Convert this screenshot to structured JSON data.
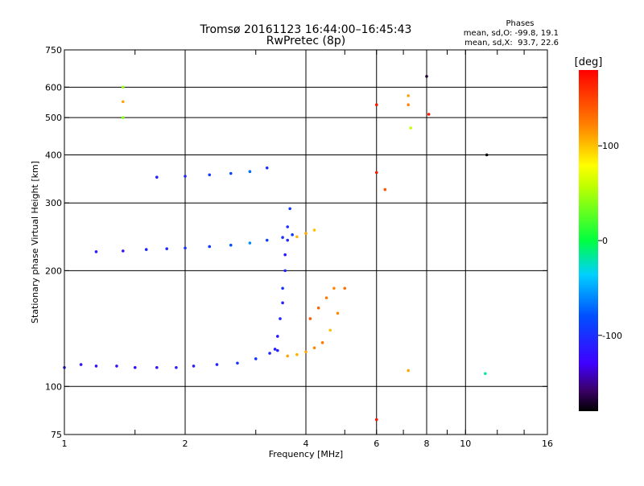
{
  "chart_data": {
    "type": "scatter",
    "title": "Tromsø 20161123 16:44:00–16:45:43",
    "subtitle": "RwPretec (8p)",
    "xlabel": "Frequency [MHz]",
    "ylabel": "Stationary phase Virtual Height [km]",
    "x_scale": "log",
    "y_scale": "log",
    "xlim": [
      1,
      16
    ],
    "ylim": [
      75,
      750
    ],
    "x_ticks": [
      "1",
      "2",
      "4",
      "6",
      "8",
      "10",
      "16"
    ],
    "y_ticks": [
      "75",
      "100",
      "200",
      "300",
      "400",
      "500",
      "600",
      "750"
    ],
    "x_grid_lines": [
      2,
      4,
      6,
      8,
      10
    ],
    "y_grid_lines": [
      100,
      200,
      300,
      400,
      500,
      600
    ],
    "stats": {
      "heading": "Phases",
      "line_o": "mean, sd,O: -99.8, 19.1",
      "line_x": "mean, sd,X:  93.7, 22.6"
    },
    "colorbar": {
      "label": "[deg]",
      "ticks": [
        "100",
        "0",
        "-100"
      ],
      "tick_values": [
        100,
        0,
        -100
      ],
      "range": [
        -180,
        180
      ]
    },
    "series": [
      {
        "x": [
          1.0,
          1.1,
          1.2,
          1.35,
          1.5,
          1.7,
          1.9,
          2.1,
          2.4,
          2.7,
          3.0,
          3.25,
          3.4
        ],
        "y": [
          112,
          114,
          113,
          113,
          112,
          112,
          112,
          113,
          114,
          115,
          118,
          122,
          124
        ],
        "phase": [
          -110,
          -115,
          -120,
          -118,
          -125,
          -120,
          -110,
          -112,
          -108,
          -100,
          -95,
          -105,
          -110
        ]
      },
      {
        "x": [
          3.35,
          3.4,
          3.45,
          3.5,
          3.5,
          3.55,
          3.55,
          3.6,
          3.6,
          3.65
        ],
        "y": [
          125,
          135,
          150,
          165,
          180,
          200,
          220,
          240,
          260,
          290
        ],
        "phase": [
          -110,
          -115,
          -105,
          -110,
          -100,
          -108,
          -112,
          -105,
          -100,
          -95
        ]
      },
      {
        "x": [
          1.2,
          1.4,
          1.6,
          1.8,
          2.0,
          2.3,
          2.6,
          2.9,
          3.2,
          3.5,
          3.7
        ],
        "y": [
          224,
          225,
          227,
          228,
          229,
          231,
          233,
          236,
          240,
          244,
          248
        ],
        "phase": [
          -110,
          -115,
          -108,
          -105,
          -100,
          -95,
          -80,
          -60,
          -90,
          -100,
          -95
        ]
      },
      {
        "x": [
          1.7,
          2.0,
          2.3,
          2.6,
          2.9,
          3.2
        ],
        "y": [
          350,
          352,
          355,
          358,
          362,
          370
        ],
        "phase": [
          -110,
          -105,
          -95,
          -85,
          -70,
          -100
        ]
      },
      {
        "x": [
          3.6,
          3.8,
          4.0,
          4.2,
          4.4,
          4.6,
          4.8,
          5.0
        ],
        "y": [
          120,
          121,
          123,
          126,
          130,
          140,
          155,
          180
        ],
        "phase": [
          110,
          105,
          110,
          120,
          125,
          100,
          120,
          130
        ]
      },
      {
        "x": [
          4.1,
          4.3,
          4.5,
          4.7
        ],
        "y": [
          150,
          160,
          170,
          180
        ],
        "phase": [
          140,
          135,
          125,
          120
        ]
      },
      {
        "x": [
          3.8,
          4.0,
          4.2
        ],
        "y": [
          245,
          250,
          255
        ],
        "phase": [
          105,
          110,
          100
        ]
      },
      {
        "x": [
          6.0,
          6.0,
          7.2,
          7.2,
          7.3,
          8.0,
          8.1,
          11.3,
          1.4,
          1.4,
          1.4,
          6.0,
          6.3,
          7.2,
          11.2
        ],
        "y": [
          540,
          360,
          570,
          540,
          470,
          640,
          510,
          400,
          600,
          550,
          500,
          82,
          325,
          110,
          108
        ],
        "phase": [
          170,
          170,
          110,
          120,
          60,
          -170,
          170,
          -180,
          45,
          110,
          40,
          170,
          140,
          110,
          -20
        ]
      }
    ]
  }
}
